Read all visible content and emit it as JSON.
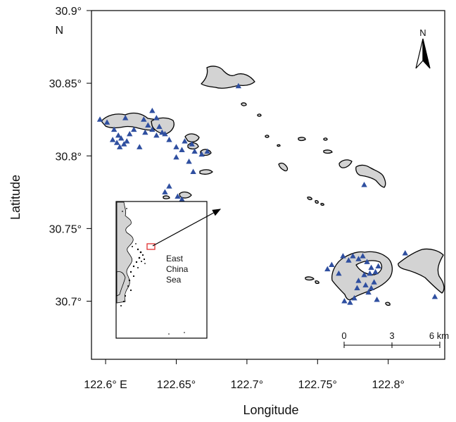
{
  "map": {
    "xlabel": "Longitude",
    "ylabel": "Latitude",
    "x_ticks": [
      {
        "value": 122.6,
        "label": "122.6° E"
      },
      {
        "value": 122.65,
        "label": "122.65°"
      },
      {
        "value": 122.7,
        "label": "122.7°"
      },
      {
        "value": 122.75,
        "label": "122.75°"
      },
      {
        "value": 122.8,
        "label": "122.8°"
      }
    ],
    "y_ticks": [
      {
        "value": 30.7,
        "label": "30.7°"
      },
      {
        "value": 30.75,
        "label": "30.75°"
      },
      {
        "value": 30.8,
        "label": "30.8°"
      },
      {
        "value": 30.85,
        "label": "30.85°"
      },
      {
        "value": 30.9,
        "label": "30.9°"
      }
    ],
    "y_top_suffix": "N",
    "xlim": [
      122.59,
      122.84
    ],
    "ylim": [
      30.66,
      30.9
    ],
    "north_label": "N",
    "scale_bar": {
      "labels": [
        "0",
        "3",
        "6 km"
      ]
    },
    "inset": {
      "sea_label_lines": [
        "East",
        "China",
        "Sea"
      ]
    },
    "colors": {
      "land": "#d3d3d3",
      "outline": "#000000",
      "marker": "#2f4fa0",
      "inset_highlight": "#e03030"
    },
    "marker_shape": "triangle",
    "observations": [
      [
        122.596,
        30.825
      ],
      [
        122.601,
        30.823
      ],
      [
        122.606,
        30.818
      ],
      [
        122.609,
        30.814
      ],
      [
        122.605,
        30.811
      ],
      [
        122.608,
        30.809
      ],
      [
        122.611,
        30.812
      ],
      [
        122.613,
        30.808
      ],
      [
        122.61,
        30.806
      ],
      [
        122.615,
        30.81
      ],
      [
        122.617,
        30.815
      ],
      [
        122.62,
        30.818
      ],
      [
        122.614,
        30.826
      ],
      [
        122.627,
        30.825
      ],
      [
        122.63,
        30.821
      ],
      [
        122.633,
        30.818
      ],
      [
        122.633,
        30.831
      ],
      [
        122.636,
        30.826
      ],
      [
        122.638,
        30.82
      ],
      [
        122.64,
        30.816
      ],
      [
        122.636,
        30.814
      ],
      [
        122.642,
        30.815
      ],
      [
        122.645,
        30.811
      ],
      [
        122.65,
        30.806
      ],
      [
        122.654,
        30.804
      ],
      [
        122.656,
        30.81
      ],
      [
        122.661,
        30.808
      ],
      [
        122.663,
        30.803
      ],
      [
        122.668,
        30.801
      ],
      [
        122.672,
        30.803
      ],
      [
        122.659,
        30.796
      ],
      [
        122.662,
        30.789
      ],
      [
        122.65,
        30.799
      ],
      [
        122.645,
        30.779
      ],
      [
        122.642,
        30.775
      ],
      [
        122.651,
        30.772
      ],
      [
        122.654,
        30.77
      ],
      [
        122.624,
        30.806
      ],
      [
        122.628,
        30.816
      ],
      [
        122.694,
        30.848
      ],
      [
        122.783,
        30.78
      ],
      [
        122.768,
        30.731
      ],
      [
        122.772,
        30.728
      ],
      [
        122.775,
        30.731
      ],
      [
        122.779,
        30.729
      ],
      [
        122.782,
        30.731
      ],
      [
        122.785,
        30.727
      ],
      [
        122.788,
        30.723
      ],
      [
        122.791,
        30.72
      ],
      [
        122.793,
        30.724
      ],
      [
        122.787,
        30.719
      ],
      [
        122.783,
        30.718
      ],
      [
        122.779,
        30.714
      ],
      [
        122.778,
        30.709
      ],
      [
        122.776,
        30.702
      ],
      [
        122.773,
        30.699
      ],
      [
        122.769,
        30.7
      ],
      [
        122.786,
        30.706
      ],
      [
        122.784,
        30.711
      ],
      [
        122.788,
        30.709
      ],
      [
        122.79,
        30.713
      ],
      [
        122.792,
        30.701
      ],
      [
        122.757,
        30.722
      ],
      [
        122.76,
        30.725
      ],
      [
        122.765,
        30.719
      ],
      [
        122.812,
        30.733
      ],
      [
        122.833,
        30.703
      ]
    ]
  }
}
